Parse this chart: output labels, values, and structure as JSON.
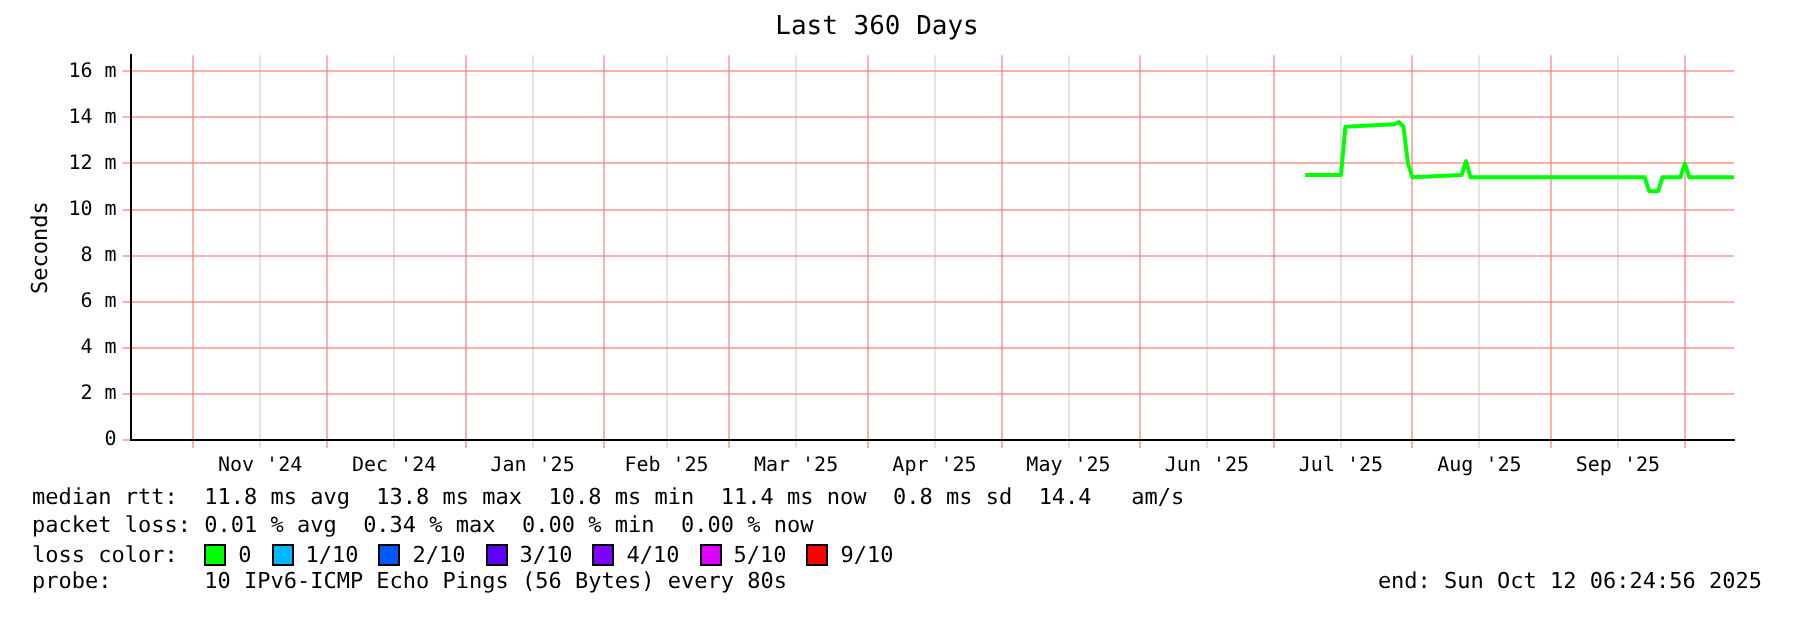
{
  "chart_data": {
    "type": "line",
    "title": "Last 360 Days",
    "ylabel": "Seconds",
    "legend_title": "loss color:",
    "legend": "bottom",
    "grid": true,
    "marker": "none",
    "line_style": "solid",
    "x": [
      "2025-07-08",
      "2025-07-16",
      "2025-07-17",
      "2025-07-28",
      "2025-07-29",
      "2025-07-30",
      "2025-07-31",
      "2025-08-01",
      "2025-08-12",
      "2025-08-13",
      "2025-08-14",
      "2025-09-22",
      "2025-09-23",
      "2025-09-25",
      "2025-09-26",
      "2025-09-30",
      "2025-10-01",
      "2025-10-02",
      "2025-10-12"
    ],
    "xlim": [
      "2024-10-18",
      "2025-10-12"
    ],
    "xticks": [
      {
        "value": "2024-11-01",
        "label": null
      },
      {
        "value": "2024-11-16",
        "label": "Nov '24"
      },
      {
        "value": "2024-12-01",
        "label": null
      },
      {
        "value": "2024-12-16",
        "label": "Dec '24"
      },
      {
        "value": "2025-01-01",
        "label": null
      },
      {
        "value": "2025-01-16",
        "label": "Jan '25"
      },
      {
        "value": "2025-02-01",
        "label": null
      },
      {
        "value": "2025-02-15",
        "label": "Feb '25"
      },
      {
        "value": "2025-03-01",
        "label": null
      },
      {
        "value": "2025-03-16",
        "label": "Mar '25"
      },
      {
        "value": "2025-04-01",
        "label": null
      },
      {
        "value": "2025-04-16",
        "label": "Apr '25"
      },
      {
        "value": "2025-05-01",
        "label": null
      },
      {
        "value": "2025-05-16",
        "label": "May '25"
      },
      {
        "value": "2025-06-01",
        "label": null
      },
      {
        "value": "2025-06-16",
        "label": "Jun '25"
      },
      {
        "value": "2025-07-01",
        "label": null
      },
      {
        "value": "2025-07-16",
        "label": "Jul '25"
      },
      {
        "value": "2025-08-01",
        "label": null
      },
      {
        "value": "2025-08-16",
        "label": "Aug '25"
      },
      {
        "value": "2025-09-01",
        "label": null
      },
      {
        "value": "2025-09-16",
        "label": "Sep '25"
      },
      {
        "value": "2025-10-01",
        "label": null
      }
    ],
    "ylim": [
      0,
      16.7
    ],
    "yticks": [
      0,
      {
        "value": 2,
        "label": "2 m"
      },
      {
        "value": 4,
        "label": "4 m"
      },
      {
        "value": 6,
        "label": "6 m"
      },
      {
        "value": 8,
        "label": "8 m"
      },
      {
        "value": 10,
        "label": "10 m"
      },
      {
        "value": 12,
        "label": "12 m"
      },
      {
        "value": 14,
        "label": "14 m"
      },
      {
        "value": 16,
        "label": "16 m"
      }
    ],
    "series": [
      {
        "name": "0",
        "color": "#00ff00",
        "values": [
          11.5,
          11.5,
          13.6,
          13.7,
          13.8,
          13.6,
          12,
          11.4,
          11.5,
          12.1,
          11.4,
          11.4,
          10.8,
          10.8,
          11.4,
          11.4,
          12,
          11.4,
          11.4
        ]
      },
      {
        "name": "1/10",
        "color": "#00b8ff",
        "values": [
          null,
          null,
          null,
          null,
          null,
          null,
          null,
          null,
          null,
          null,
          null,
          null,
          null,
          null,
          null,
          null,
          null,
          null,
          null
        ]
      },
      {
        "name": "2/10",
        "color": "#0059ff",
        "values": [
          null,
          null,
          null,
          null,
          null,
          null,
          null,
          null,
          null,
          null,
          null,
          null,
          null,
          null,
          null,
          null,
          null,
          null,
          null
        ]
      },
      {
        "name": "3/10",
        "color": "#5e00ff",
        "values": [
          null,
          null,
          null,
          null,
          null,
          null,
          null,
          null,
          null,
          null,
          null,
          null,
          null,
          null,
          null,
          null,
          null,
          null,
          null
        ]
      },
      {
        "name": "4/10",
        "color": "#7e00ff",
        "values": [
          null,
          null,
          null,
          null,
          null,
          null,
          null,
          null,
          null,
          null,
          null,
          null,
          null,
          null,
          null,
          null,
          null,
          null,
          null
        ]
      },
      {
        "name": "5/10",
        "color": "#dd00ff",
        "values": [
          null,
          null,
          null,
          null,
          null,
          null,
          null,
          null,
          null,
          null,
          null,
          null,
          null,
          null,
          null,
          null,
          null,
          null,
          null
        ]
      },
      {
        "name": "9/10",
        "color": "#ff0000",
        "values": [
          null,
          null,
          null,
          null,
          null,
          null,
          null,
          null,
          null,
          null,
          null,
          null,
          null,
          null,
          null,
          null,
          null,
          null,
          null
        ]
      }
    ],
    "annotations": [
      "median rtt:  11.8 ms avg  13.8 ms max  10.8 ms min  11.4 ms now  0.8 ms sd  14.4   am/s",
      "packet loss: 0.01 % avg  0.34 % max  0.00 % min  0.00 % now",
      "probe:       10 IPv6-ICMP Echo Pings (56 Bytes) every 80s",
      "end: Sun Oct 12 06:24:56 2025"
    ]
  }
}
